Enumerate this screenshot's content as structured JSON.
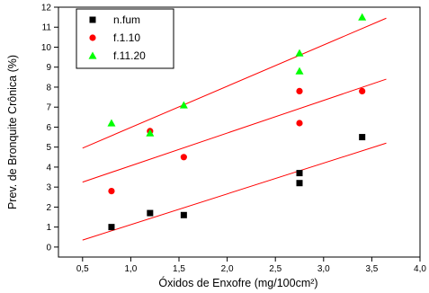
{
  "chart_data": {
    "type": "scatter",
    "title": "",
    "xlabel": "Óxidos de Enxofre (mg/100cm²)",
    "ylabel": "Prev. de Bronquite Crônica (%)",
    "xlim": [
      0.25,
      4.0
    ],
    "ylim": [
      -0.5,
      12
    ],
    "x_ticks": [
      0.5,
      1.0,
      1.5,
      2.0,
      2.5,
      3.0,
      3.5,
      4.0
    ],
    "x_tick_labels": [
      "0,5",
      "1,0",
      "1,5",
      "2,0",
      "2,5",
      "3,0",
      "3,5",
      "4,0"
    ],
    "y_ticks": [
      0,
      1,
      2,
      3,
      4,
      5,
      6,
      7,
      8,
      9,
      10,
      11,
      12
    ],
    "y_tick_labels": [
      "0",
      "1",
      "2",
      "3",
      "4",
      "5",
      "6",
      "7",
      "8",
      "9",
      "10",
      "11",
      "12"
    ],
    "grid": false,
    "legend_position": "top-left",
    "series": [
      {
        "name": "n.fum",
        "marker": "square",
        "color": "#000000",
        "x": [
          0.8,
          1.2,
          1.55,
          2.75,
          2.75,
          3.4
        ],
        "y": [
          1.0,
          1.7,
          1.6,
          3.7,
          3.2,
          5.5
        ]
      },
      {
        "name": "f.1.10",
        "marker": "circle",
        "color": "#ff0000",
        "x": [
          0.8,
          1.2,
          1.55,
          2.75,
          2.75,
          3.4
        ],
        "y": [
          2.8,
          5.8,
          4.5,
          7.8,
          6.2,
          7.8
        ]
      },
      {
        "name": "f.11.20",
        "marker": "triangle",
        "color": "#00ff00",
        "x": [
          0.8,
          1.2,
          1.55,
          2.75,
          2.75,
          3.4
        ],
        "y": [
          6.2,
          5.7,
          7.1,
          9.7,
          8.8,
          11.5
        ]
      }
    ],
    "fit_lines": {
      "color": "#ff0000",
      "lines": [
        {
          "x": [
            0.5,
            3.65
          ],
          "y": [
            0.35,
            5.2
          ]
        },
        {
          "x": [
            0.5,
            3.65
          ],
          "y": [
            3.25,
            8.4
          ]
        },
        {
          "x": [
            0.5,
            3.65
          ],
          "y": [
            4.95,
            11.45
          ]
        }
      ]
    }
  }
}
